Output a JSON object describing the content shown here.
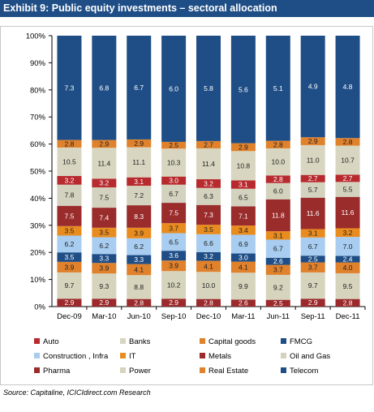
{
  "header": {
    "title": "Exhibit 9: Public equity investments – sectoral allocation"
  },
  "source": "Source: Capitaline, ICICIdirect.com Research",
  "colors": {
    "Auto": "#b72a2e",
    "Banks": "#d8d6c0",
    "Capital goods": "#e0812c",
    "FMCG": "#1f4e86",
    "Construction , Infra": "#a8cdf0",
    "IT": "#e98c1f",
    "Metals": "#9c2a2c",
    "Oil and Gas": "#d3d2be",
    "Pharma": "#9a2c2c",
    "Power": "#d6d4bd",
    "Real Estate": "#e0812c",
    "Telecom": "#1f4e86"
  },
  "chart_data": {
    "type": "bar",
    "stacked": true,
    "ylim": [
      0,
      100
    ],
    "yticks": [
      "0%",
      "10%",
      "20%",
      "30%",
      "40%",
      "50%",
      "60%",
      "70%",
      "80%",
      "90%",
      "100%"
    ],
    "categories": [
      "Dec-09",
      "Mar-10",
      "Jun-10",
      "Sep-10",
      "Dec-10",
      "Mar-11",
      "Jun-11",
      "Sep-11",
      "Dec-11"
    ],
    "legend_position": "bottom",
    "series": [
      {
        "name": "Metals",
        "values": [
          2.9,
          2.9,
          2.8,
          2.9,
          2.8,
          2.6,
          2.5,
          2.9,
          2.8
        ]
      },
      {
        "name": "Power",
        "values": [
          9.7,
          9.3,
          8.8,
          10.2,
          10.0,
          9.9,
          9.2,
          9.7,
          9.5
        ]
      },
      {
        "name": "Real Estate",
        "values": [
          3.9,
          3.9,
          4.1,
          3.9,
          4.1,
          4.1,
          3.7,
          3.7,
          4.0
        ]
      },
      {
        "name": "Telecom",
        "values": [
          3.5,
          3.3,
          3.3,
          3.6,
          3.2,
          3.0,
          2.6,
          2.5,
          2.4
        ]
      },
      {
        "name": "Construction , Infra",
        "values": [
          6.2,
          6.2,
          6.2,
          6.5,
          6.6,
          6.9,
          6.7,
          6.7,
          7.0
        ]
      },
      {
        "name": "IT",
        "values": [
          3.5,
          3.5,
          3.9,
          3.7,
          3.5,
          3.4,
          3.1,
          3.1,
          3.2
        ]
      },
      {
        "name": "Pharma",
        "values": [
          7.5,
          7.4,
          8.3,
          7.5,
          7.3,
          7.1,
          11.8,
          11.6,
          11.6
        ]
      },
      {
        "name": "Oil and Gas",
        "values": [
          7.8,
          7.5,
          7.2,
          6.7,
          6.3,
          6.5,
          6.0,
          5.7,
          5.5
        ]
      },
      {
        "name": "Auto",
        "values": [
          3.2,
          3.2,
          3.1,
          3.0,
          3.2,
          3.1,
          2.8,
          2.7,
          2.7
        ]
      },
      {
        "name": "Banks",
        "values": [
          10.5,
          11.4,
          11.1,
          10.3,
          11.4,
          10.8,
          10.0,
          11.0,
          10.7
        ]
      },
      {
        "name": "Capital goods",
        "values": [
          2.8,
          2.9,
          2.9,
          2.5,
          2.7,
          2.9,
          2.8,
          2.9,
          2.8
        ]
      },
      {
        "name": "FMCG",
        "values": [
          7.3,
          6.8,
          6.7,
          6.0,
          5.8,
          5.6,
          5.1,
          4.9,
          4.8
        ]
      }
    ],
    "legend": [
      "Auto",
      "Banks",
      "Capital goods",
      "FMCG",
      "Construction , Infra",
      "IT",
      "Metals",
      "Oil and Gas",
      "Pharma",
      "Power",
      "Real Estate",
      "Telecom"
    ]
  }
}
